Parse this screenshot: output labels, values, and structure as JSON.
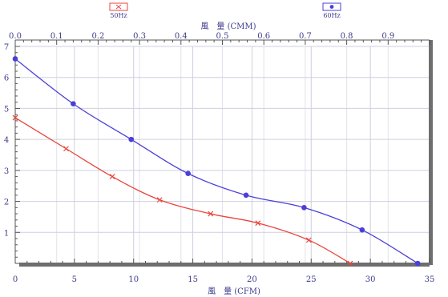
{
  "chart_data": {
    "type": "line",
    "xlabel": "風　量 (CFM)",
    "x2label": "風　量 (CMM)",
    "xlim": [
      0,
      35
    ],
    "x2lim": [
      0,
      1.0
    ],
    "ylim": [
      0,
      7
    ],
    "grid": true,
    "legend_placement": "top",
    "x_ticks": [
      "0",
      "5",
      "10",
      "15",
      "20",
      "25",
      "30",
      "35"
    ],
    "x2_ticks": [
      "0.0",
      "0.1",
      "0.2",
      "0.3",
      "0.4",
      "0.5",
      "0.6",
      "0.7",
      "0.8",
      "0.9"
    ],
    "y_ticks": [
      "1",
      "2",
      "3",
      "4",
      "5",
      "6",
      "7"
    ],
    "series": [
      {
        "name": "50Hz",
        "color": "#e8463c",
        "marker": "x",
        "x": [
          0,
          4.3,
          8.2,
          12.2,
          16.5,
          20.5,
          24.8,
          28.3
        ],
        "y": [
          4.7,
          3.7,
          2.8,
          2.05,
          1.6,
          1.3,
          0.75,
          0.0
        ]
      },
      {
        "name": "60Hz",
        "color": "#4b3fd9",
        "marker": "dot",
        "x": [
          0,
          4.9,
          9.8,
          14.6,
          19.5,
          24.4,
          29.3,
          34.0
        ],
        "y": [
          6.6,
          5.15,
          4.0,
          2.9,
          2.2,
          1.8,
          1.08,
          0.0
        ]
      }
    ]
  }
}
